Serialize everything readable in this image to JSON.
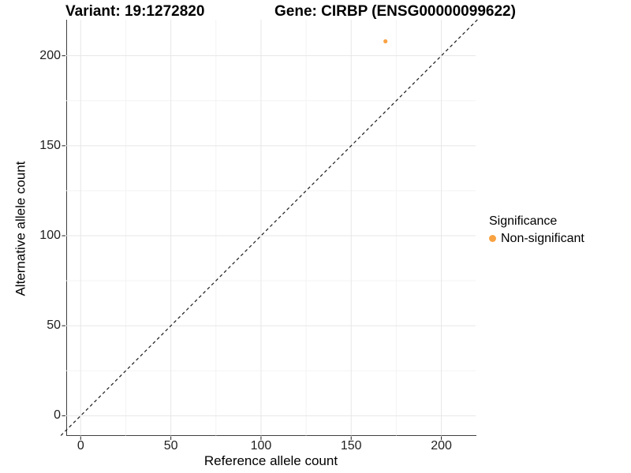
{
  "titles": {
    "variant": "Variant: 19:1272820",
    "gene": "Gene: CIRBP (ENSG00000099622)"
  },
  "chart_data": {
    "type": "scatter",
    "title": "Variant: 19:1272820   Gene: CIRBP (ENSG00000099622)",
    "xlabel": "Reference allele count",
    "ylabel": "Alternative allele count",
    "xlim": [
      -8,
      219
    ],
    "ylim": [
      -11,
      220
    ],
    "x_ticks": [
      0,
      50,
      100,
      150,
      200
    ],
    "y_ticks": [
      0,
      50,
      100,
      150,
      200
    ],
    "minor_grid_step": 25,
    "grid": "major and minor gridlines on, white background",
    "points": [
      {
        "x": 169,
        "y": 208,
        "series": "Non-significant"
      }
    ],
    "abline": {
      "slope": 1,
      "intercept": 0,
      "style": "dashed",
      "color": "#1a1a1a"
    },
    "legend": {
      "title": "Significance",
      "position": "right",
      "items": [
        {
          "label": "Non-significant",
          "color": "#F9A242"
        }
      ]
    },
    "colors": {
      "point": "#F9A242",
      "major_grid": "#e7e7e7",
      "minor_grid": "#f3f3f3",
      "axis_line": "#3f3f3f",
      "tick": "#333333"
    }
  }
}
